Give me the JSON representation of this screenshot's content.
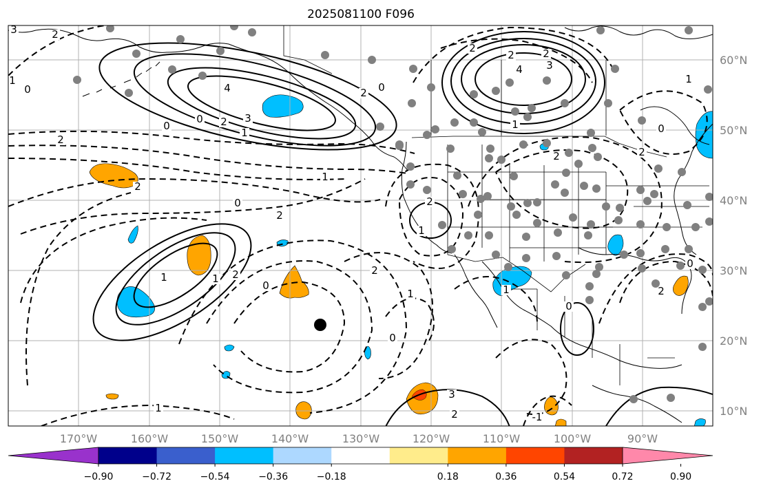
{
  "title": "2025081100 F096",
  "map": {
    "lon_ticks": [
      "170°W",
      "160°W",
      "150°W",
      "140°W",
      "130°W",
      "120°W",
      "110°W",
      "100°W",
      "90°W"
    ],
    "lat_ticks": [
      "60°N",
      "50°N",
      "40°N",
      "30°N",
      "20°N",
      "10°N"
    ],
    "contour_labels": [
      "3",
      "2",
      "1",
      "0",
      "4",
      "3",
      "2",
      "0",
      "2",
      "1",
      "2",
      "1",
      "0",
      "2",
      "2",
      "4",
      "3",
      "2",
      "1",
      "2",
      "2",
      "0",
      "2",
      "1",
      "2",
      "0",
      "2",
      "1",
      "0",
      "1",
      "1",
      "2",
      "0",
      "2",
      "1",
      "0",
      "3",
      "2",
      "1",
      "-1",
      "0",
      "1",
      "0",
      "2"
    ],
    "colors": {
      "land_line": "#000000",
      "grid": "#b0b0b0",
      "station_dot": "#808080",
      "storm_marker": "#000000"
    }
  },
  "colorbar": {
    "tick_labels": [
      "−0.90",
      "−0.72",
      "−0.54",
      "−0.36",
      "−0.18",
      "0.18",
      "0.36",
      "0.54",
      "0.72",
      "0.90"
    ],
    "colors": [
      "#9932cc",
      "#00008b",
      "#3a5fcd",
      "#00bfff",
      "#add8ff",
      "#ffffff",
      "#ffec8b",
      "#ffa500",
      "#ff4500",
      "#b22222",
      "#ff88aa"
    ]
  }
}
